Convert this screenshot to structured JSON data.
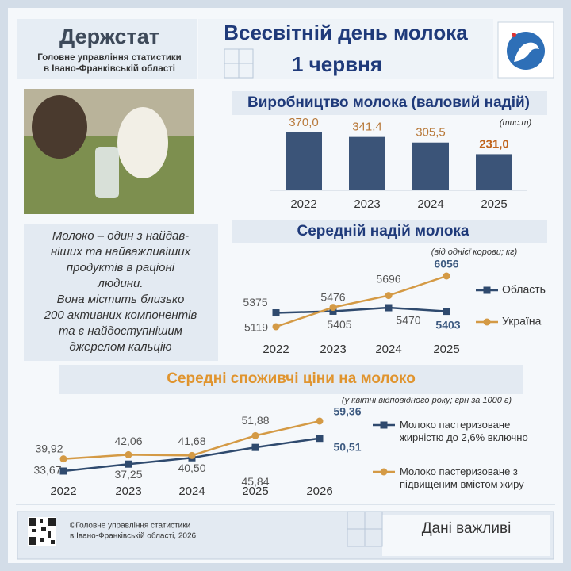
{
  "header": {
    "logo": "Держстат",
    "subtitle": [
      "Головне управління статистики",
      "в Івано-Франківській області"
    ],
    "title": "Всесвітній день молока",
    "date": "1 червня"
  },
  "intro": [
    "Молоко – один з найдав-",
    "ніших та найважливіших",
    "продуктів в раціоні",
    "людини.",
    "Вона  містить  близько",
    "200 активних компонентів",
    "та є найдоступнішим",
    "джерелом кальцію"
  ],
  "chart_data": [
    {
      "type": "bar",
      "title": "Виробництво молока (валовий надій)",
      "unit": "(тис.т)",
      "categories": [
        "2022",
        "2023",
        "2024",
        "2025"
      ],
      "values": [
        370.0,
        341.4,
        305.5,
        231.0
      ],
      "value_labels": [
        "370,0",
        "341,4",
        "305,5",
        "231,0"
      ],
      "color": "#3b5478"
    },
    {
      "type": "line",
      "title": "Середній надій молока",
      "subtitle": "(від однієї корови; кг)",
      "categories": [
        "2022",
        "2023",
        "2024",
        "2025"
      ],
      "series": [
        {
          "name": "Область",
          "color": "#2f4a6e",
          "values": [
            5375,
            5405,
            5470,
            5403
          ]
        },
        {
          "name": "Україна",
          "color": "#d49a45",
          "values": [
            5119,
            5476,
            5696,
            6056
          ]
        }
      ]
    },
    {
      "type": "line",
      "title": "Середні споживчі ціни на молоко",
      "subtitle": "(у квітні  відповідного року; грн за 1000 г)",
      "categories": [
        "2022",
        "2023",
        "2024",
        "2025",
        "2026"
      ],
      "series": [
        {
          "name": "Молоко пастеризоване жирністю до 2,6% включно",
          "color": "#2f4a6e",
          "values": [
            33.67,
            37.25,
            40.5,
            45.84,
            50.51
          ],
          "value_labels": [
            "33,67",
            "37,25",
            "40,50",
            "45,84",
            "50,51"
          ]
        },
        {
          "name": "Молоко пастеризоване з підвищеним вмістом жиру",
          "color": "#d49a45",
          "values": [
            39.92,
            42.06,
            41.68,
            51.88,
            59.36
          ],
          "value_labels": [
            "39,92",
            "42,06",
            "41,68",
            "51,88",
            "59,36"
          ]
        }
      ]
    }
  ],
  "footer": {
    "copyright": [
      "©Головне управління статистики",
      "в Івано-Франківській області, 2026"
    ],
    "slogan": "Дані важливі"
  }
}
